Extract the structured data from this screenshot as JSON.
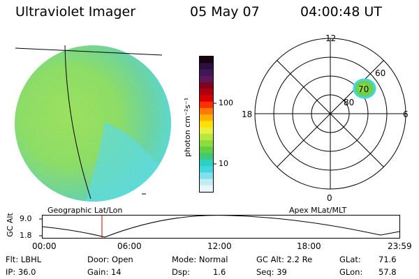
{
  "header": {
    "title": "Ultraviolet Imager",
    "date": "05 May 07",
    "time": "04:00:48 UT"
  },
  "colorbar": {
    "unit": "photon cm⁻²s⁻¹",
    "ticks": [
      "100",
      "10"
    ],
    "scale": "log",
    "colors": [
      "#1a0010",
      "#2a1040",
      "#401858",
      "#5a1a5a",
      "#800020",
      "#b00010",
      "#d80000",
      "#ff3000",
      "#ff7a00",
      "#ffb000",
      "#ffe000",
      "#e8f040",
      "#b8e840",
      "#8cdc40",
      "#60d040",
      "#40c878",
      "#30d0c0",
      "#40d8e0",
      "#80e0ec",
      "#c0ecf4",
      "#e8f6fa"
    ]
  },
  "polar": {
    "mlt_labels": [
      "12",
      "18",
      "6",
      "0"
    ],
    "mlat_labels": [
      "60",
      "70",
      "80"
    ],
    "caption": "Apex MLat/MLT"
  },
  "left_caption": "Geographic Lat/Lon",
  "altitude": {
    "label": "GC Alt",
    "ticks": [
      "9.0",
      "1.8"
    ],
    "time_ticks": [
      "00:00",
      "06:00",
      "12:00",
      "18:00",
      "23:59"
    ]
  },
  "status": {
    "flt": "Flt: LBHL",
    "ip": "IP: 36.0",
    "door": "Door: Open",
    "gain": "Gain: 14",
    "mode": "Mode: Normal",
    "dsp": "Dsp:",
    "dsp_value": "1.6",
    "gc_alt": "GC Alt: 2.2 Re",
    "seq": "Seq: 39",
    "glat": "GLat:",
    "glat_value": "71.6",
    "glon": "GLon:",
    "glon_value": "57.8"
  },
  "colors": {
    "disk_green": "#8cdc40",
    "disk_cyan": "#40d8e0",
    "marker": "#cc0000"
  }
}
